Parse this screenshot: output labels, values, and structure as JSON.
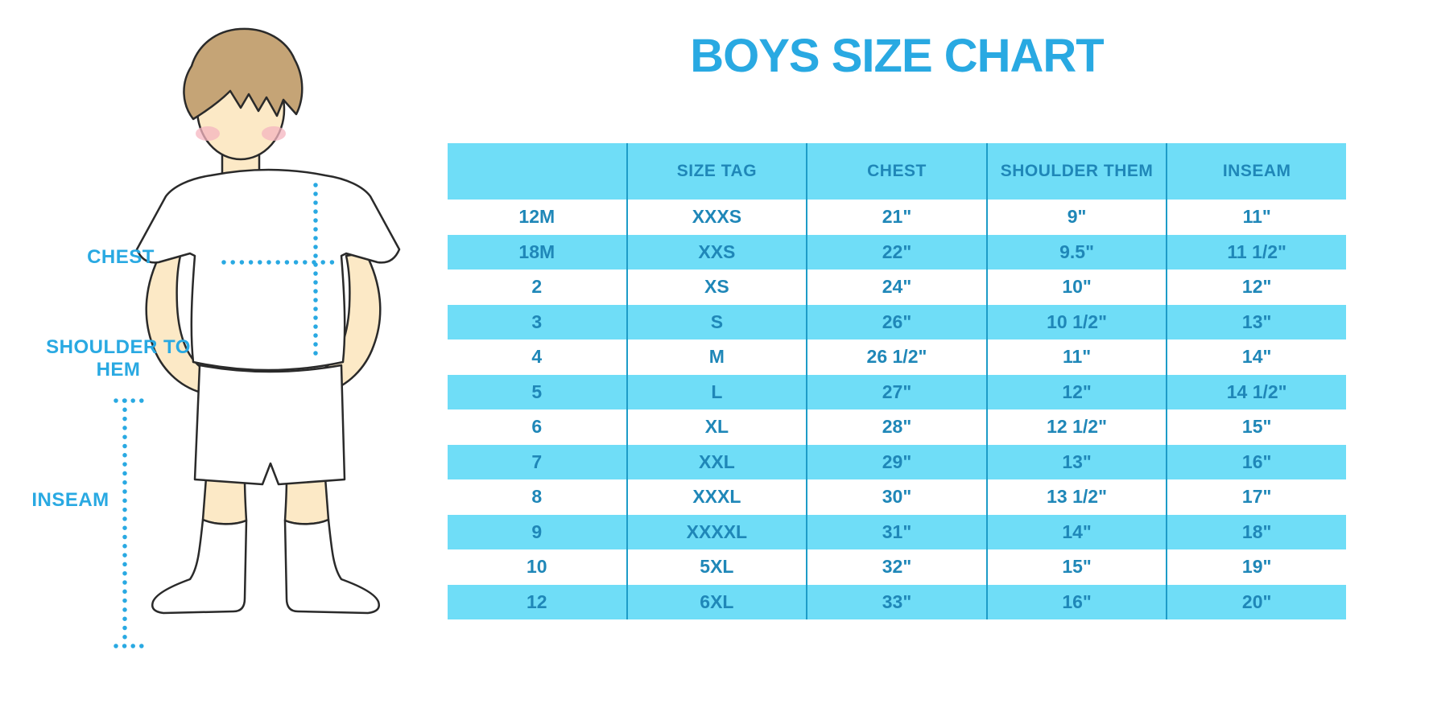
{
  "title": "BOYS SIZE CHART",
  "colors": {
    "accent_blue": "#29A9E2",
    "table_text_blue": "#1F87B8",
    "stripe_blue": "#6FDDF7",
    "divider_blue": "#1E9CC8"
  },
  "figure_labels": {
    "chest": "CHEST",
    "shoulder_to_hem": "SHOULDER TO HEM",
    "inseam": "INSEAM"
  },
  "chart_data": {
    "type": "table",
    "title": "BOYS SIZE CHART",
    "columns": [
      "",
      "SIZE TAG",
      "CHEST",
      "SHOULDER THEM",
      "INSEAM"
    ],
    "rows": [
      [
        "12M",
        "XXXS",
        "21\"",
        "9\"",
        "11\""
      ],
      [
        "18M",
        "XXS",
        "22\"",
        "9.5\"",
        "11 1/2\""
      ],
      [
        "2",
        "XS",
        "24\"",
        "10\"",
        "12\""
      ],
      [
        "3",
        "S",
        "26\"",
        "10 1/2\"",
        "13\""
      ],
      [
        "4",
        "M",
        "26 1/2\"",
        "11\"",
        "14\""
      ],
      [
        "5",
        "L",
        "27\"",
        "12\"",
        "14 1/2\""
      ],
      [
        "6",
        "XL",
        "28\"",
        "12 1/2\"",
        "15\""
      ],
      [
        "7",
        "XXL",
        "29\"",
        "13\"",
        "16\""
      ],
      [
        "8",
        "XXXL",
        "30\"",
        "13 1/2\"",
        "17\""
      ],
      [
        "9",
        "XXXXL",
        "31\"",
        "14\"",
        "18\""
      ],
      [
        "10",
        "5XL",
        "32\"",
        "15\"",
        "19\""
      ],
      [
        "12",
        "6XL",
        "33\"",
        "16\"",
        "20\""
      ]
    ]
  }
}
